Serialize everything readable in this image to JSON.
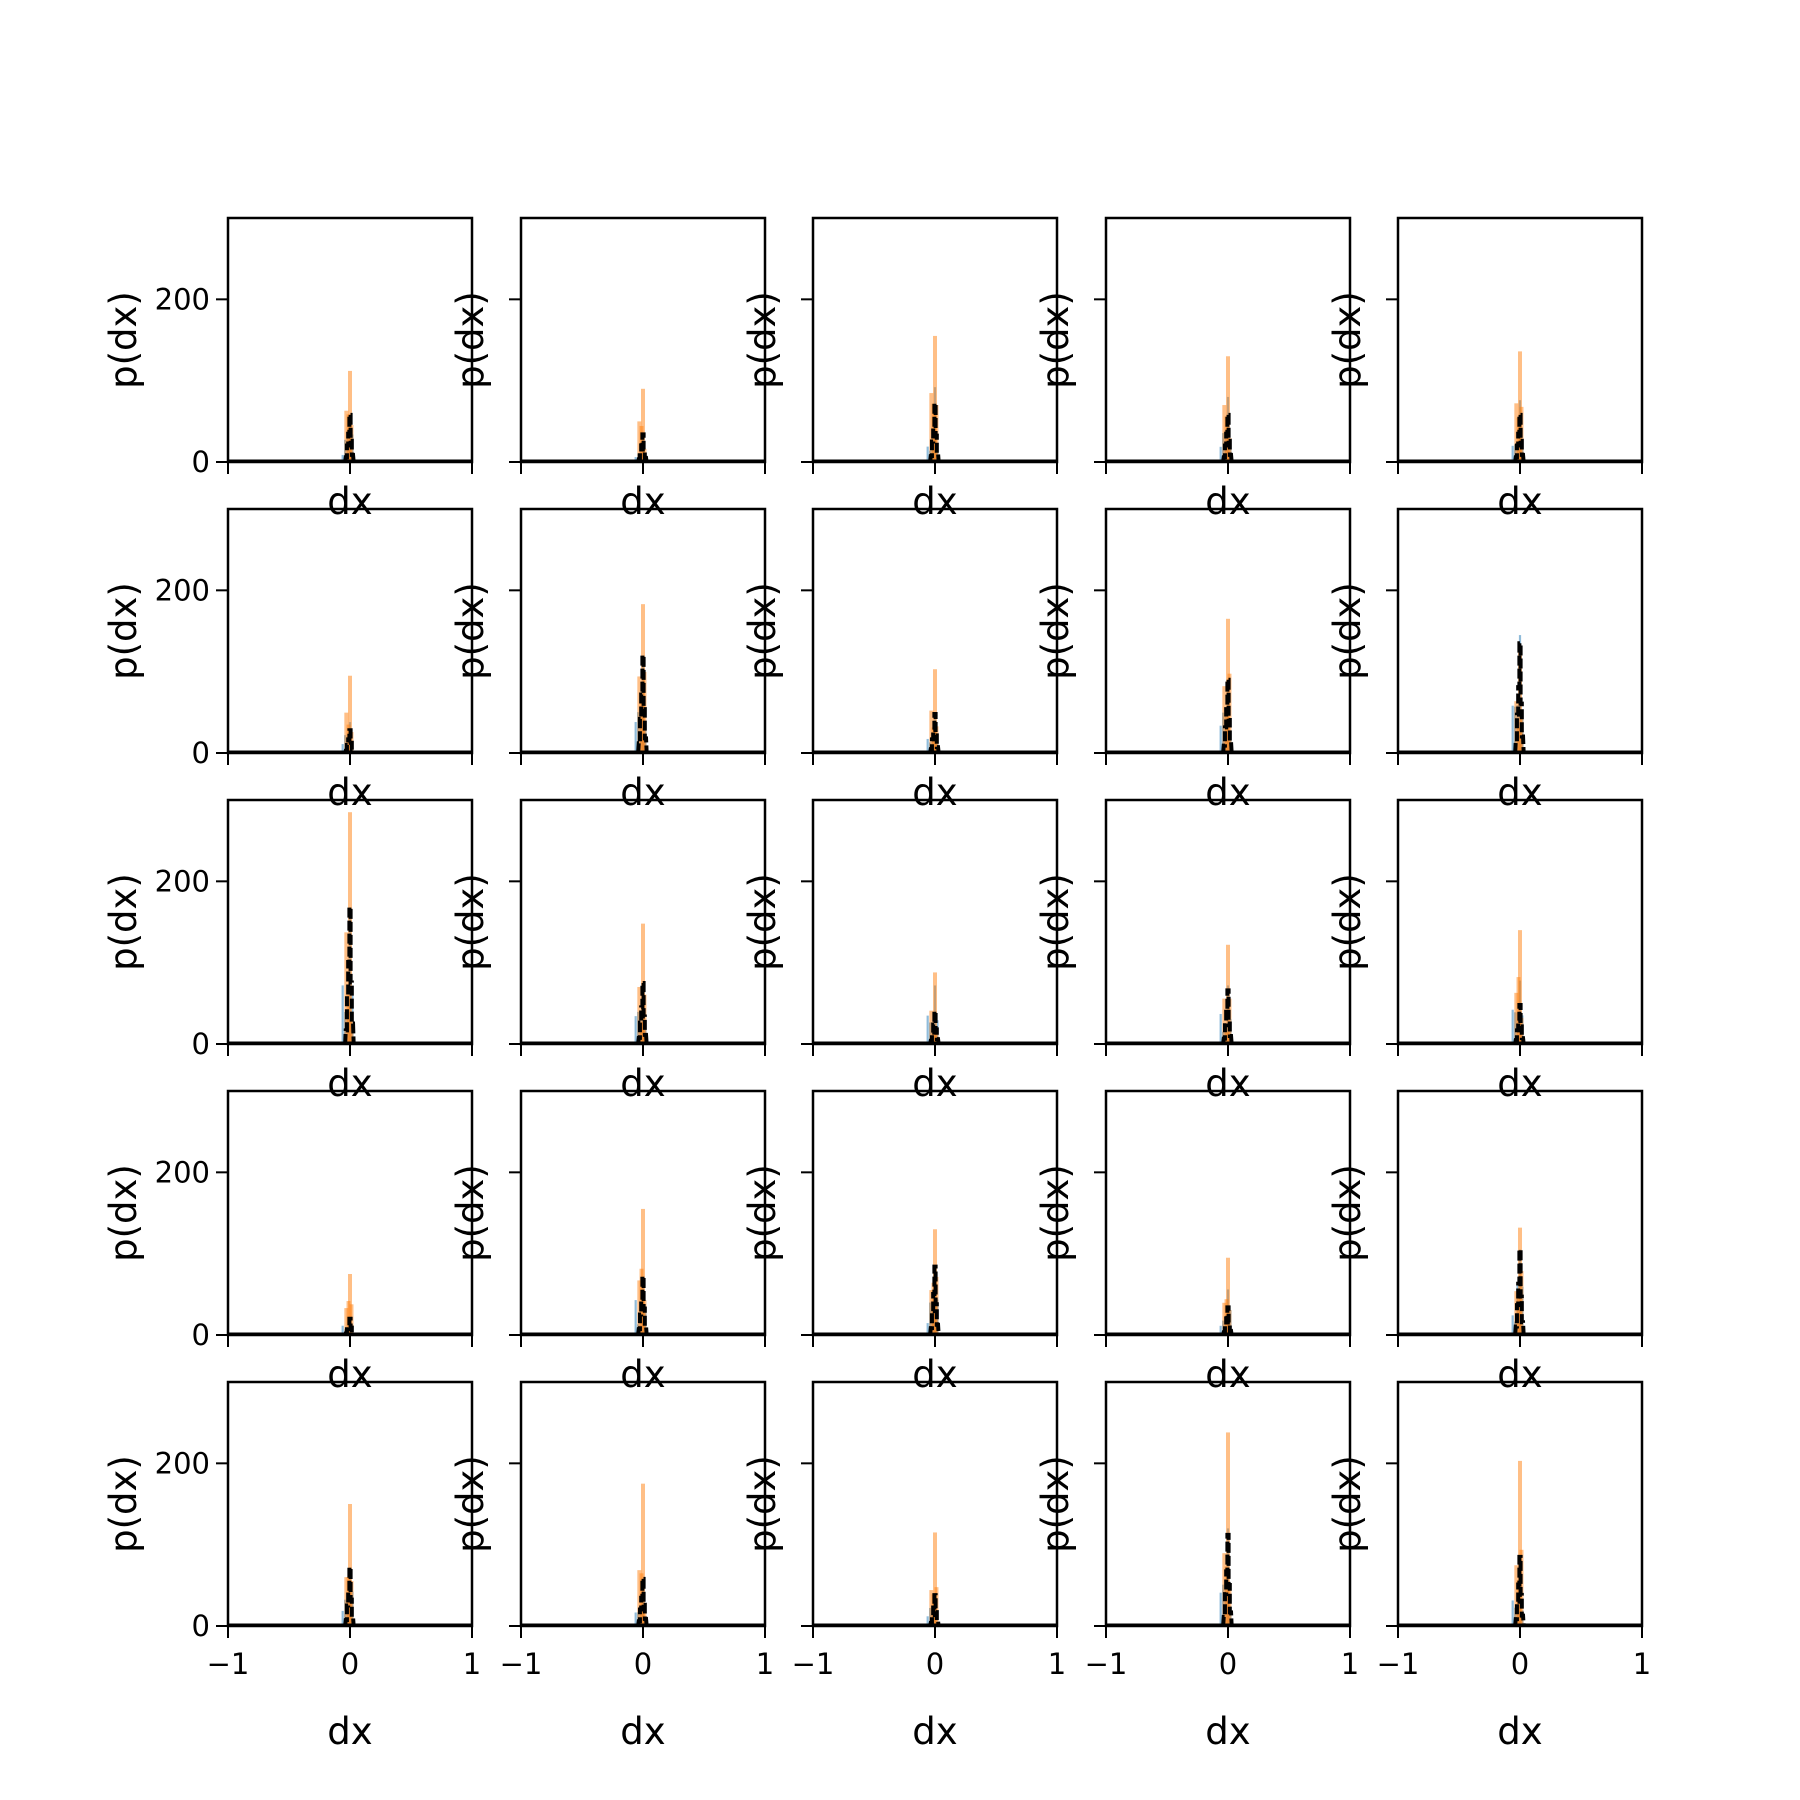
{
  "chart_data": {
    "type": "bar",
    "layout": "5x5 grid of small-multiple histograms",
    "xlabel": "dx",
    "ylabel": "p(dx)",
    "xlim": [
      -1,
      1
    ],
    "ylim": [
      0,
      300
    ],
    "x_ticks": [
      {
        "value": -1,
        "label": "−1"
      },
      {
        "value": 0,
        "label": "0"
      },
      {
        "value": 1,
        "label": "1"
      }
    ],
    "y_ticks": [
      {
        "value": 0,
        "label": "0"
      },
      {
        "value": 200,
        "label": "200"
      }
    ],
    "grid": false,
    "legend": false,
    "colors": {
      "blue": "#1f77b4",
      "orange": "#ff7f0e",
      "black": "#000000"
    },
    "panels": [
      {
        "row": 1,
        "col": 1,
        "blue_peak": 58,
        "orange_peak": 112,
        "black_peak": 58
      },
      {
        "row": 1,
        "col": 2,
        "blue_peak": 34,
        "orange_peak": 90,
        "black_peak": 34
      },
      {
        "row": 1,
        "col": 3,
        "blue_peak": 92,
        "orange_peak": 155,
        "black_peak": 72
      },
      {
        "row": 1,
        "col": 4,
        "blue_peak": 80,
        "orange_peak": 130,
        "black_peak": 58
      },
      {
        "row": 1,
        "col": 5,
        "blue_peak": 76,
        "orange_peak": 136,
        "black_peak": 58
      },
      {
        "row": 2,
        "col": 1,
        "blue_peak": 38,
        "orange_peak": 95,
        "black_peak": 28
      },
      {
        "row": 2,
        "col": 2,
        "blue_peak": 120,
        "orange_peak": 183,
        "black_peak": 120
      },
      {
        "row": 2,
        "col": 3,
        "blue_peak": 50,
        "orange_peak": 103,
        "black_peak": 48
      },
      {
        "row": 2,
        "col": 4,
        "blue_peak": 90,
        "orange_peak": 165,
        "black_peak": 90
      },
      {
        "row": 2,
        "col": 5,
        "blue_peak": 145,
        "orange_peak": 130,
        "black_peak": 135
      },
      {
        "row": 3,
        "col": 1,
        "blue_peak": 168,
        "orange_peak": 285,
        "black_peak": 168
      },
      {
        "row": 3,
        "col": 2,
        "blue_peak": 75,
        "orange_peak": 148,
        "black_peak": 75
      },
      {
        "row": 3,
        "col": 3,
        "blue_peak": 72,
        "orange_peak": 88,
        "black_peak": 40
      },
      {
        "row": 3,
        "col": 4,
        "blue_peak": 72,
        "orange_peak": 122,
        "black_peak": 66
      },
      {
        "row": 3,
        "col": 5,
        "blue_peak": 78,
        "orange_peak": 140,
        "black_peak": 48
      },
      {
        "row": 4,
        "col": 1,
        "blue_peak": 20,
        "orange_peak": 75,
        "black_peak": 20
      },
      {
        "row": 4,
        "col": 2,
        "blue_peak": 72,
        "orange_peak": 155,
        "black_peak": 72
      },
      {
        "row": 4,
        "col": 3,
        "blue_peak": 84,
        "orange_peak": 130,
        "black_peak": 84
      },
      {
        "row": 4,
        "col": 4,
        "blue_peak": 56,
        "orange_peak": 95,
        "black_peak": 34
      },
      {
        "row": 4,
        "col": 5,
        "blue_peak": 105,
        "orange_peak": 132,
        "black_peak": 105
      },
      {
        "row": 5,
        "col": 1,
        "blue_peak": 72,
        "orange_peak": 150,
        "black_peak": 72
      },
      {
        "row": 5,
        "col": 2,
        "blue_peak": 58,
        "orange_peak": 175,
        "black_peak": 58
      },
      {
        "row": 5,
        "col": 3,
        "blue_peak": 38,
        "orange_peak": 115,
        "black_peak": 38
      },
      {
        "row": 5,
        "col": 4,
        "blue_peak": 120,
        "orange_peak": 238,
        "black_peak": 112
      },
      {
        "row": 5,
        "col": 5,
        "blue_peak": 85,
        "orange_peak": 203,
        "black_peak": 85
      }
    ]
  }
}
